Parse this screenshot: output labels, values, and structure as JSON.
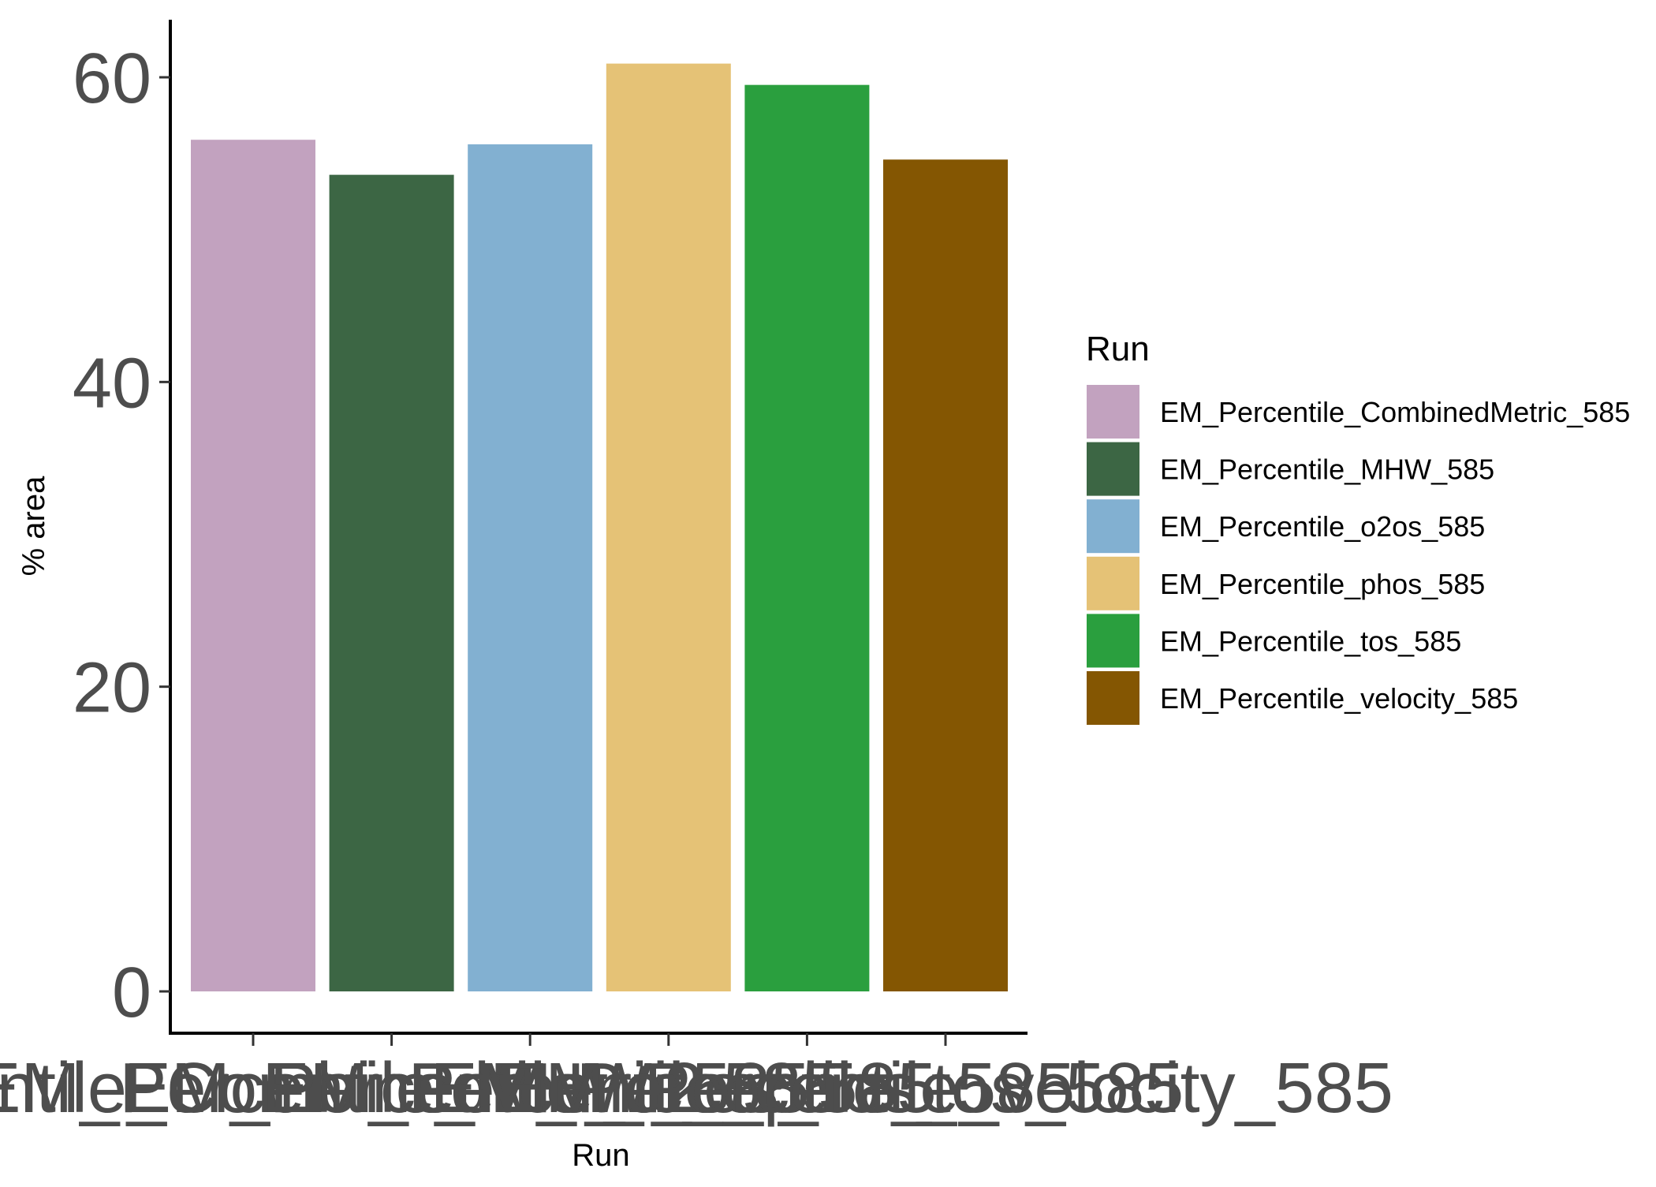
{
  "chart_data": {
    "type": "bar",
    "title": "",
    "xlabel": "Run",
    "ylabel": "% area",
    "ylim": [
      0,
      63.5
    ],
    "yticks": [
      "0",
      "20",
      "40",
      "60"
    ],
    "grid": false,
    "legend": {
      "title": "Run",
      "placement": "right"
    },
    "categories": [
      "EM_Percentile_CombinedMetric_585",
      "EM_Percentile_MHW_585",
      "EM_Percentile_o2os_585",
      "EM_Percentile_phos_585",
      "EM_Percentile_tos_585",
      "EM_Percentile_velocity_585"
    ],
    "values": [
      55.9,
      53.6,
      55.6,
      60.9,
      59.5,
      54.6
    ],
    "colors": [
      "#C2A2BF",
      "#3C6644",
      "#82B0D1",
      "#E5C276",
      "#2A9F3E",
      "#845602"
    ]
  }
}
